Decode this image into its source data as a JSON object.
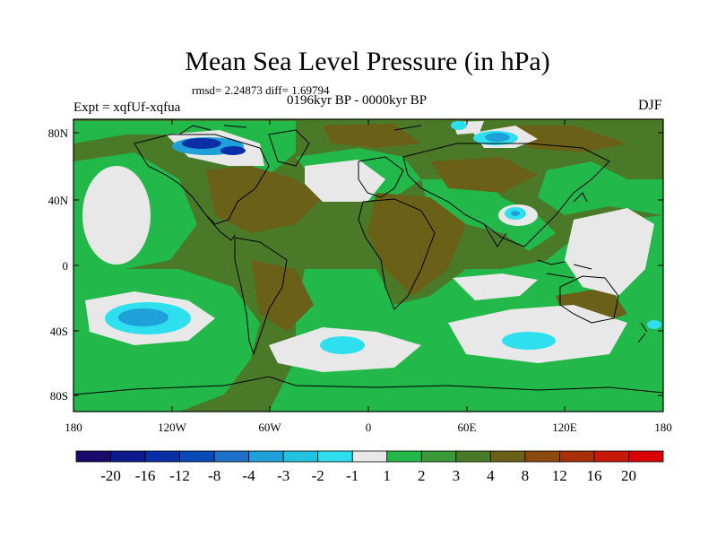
{
  "title": "Mean Sea Level Pressure (in hPa)",
  "stats": "rmsd= 2.24873  diff= 1.69794",
  "experiment": "Expt = xqfUf-xqfua",
  "period": "0196kyr BP - 0000kyr BP",
  "season": "DJF",
  "lat_ticks": [
    "80N",
    "40N",
    "0",
    "40S",
    "80S"
  ],
  "lon_ticks": [
    "180",
    "120W",
    "60W",
    "0",
    "60E",
    "120E",
    "180"
  ],
  "colorbar": {
    "labels": [
      "-20",
      "-16",
      "-12",
      "-8",
      "-4",
      "-3",
      "-2",
      "-1",
      "1",
      "2",
      "3",
      "4",
      "8",
      "12",
      "16",
      "20"
    ],
    "colors": [
      "#1a0a6e",
      "#0d1a8c",
      "#0a2ea6",
      "#0a4ab8",
      "#1e6fc8",
      "#1ea0d8",
      "#22c2e0",
      "#2ee0ee",
      "#e8e8e8",
      "#22b84a",
      "#3a9a3a",
      "#4a7a28",
      "#6a6018",
      "#8a4a10",
      "#a83008",
      "#c81808",
      "#d80000"
    ]
  },
  "regions": {
    "background_color": "#4a7a28",
    "green_color": "#22b84a",
    "gray_color": "#e8e8e8",
    "cyan_color": "#2ee0ee",
    "brown_color": "#6a6018"
  }
}
